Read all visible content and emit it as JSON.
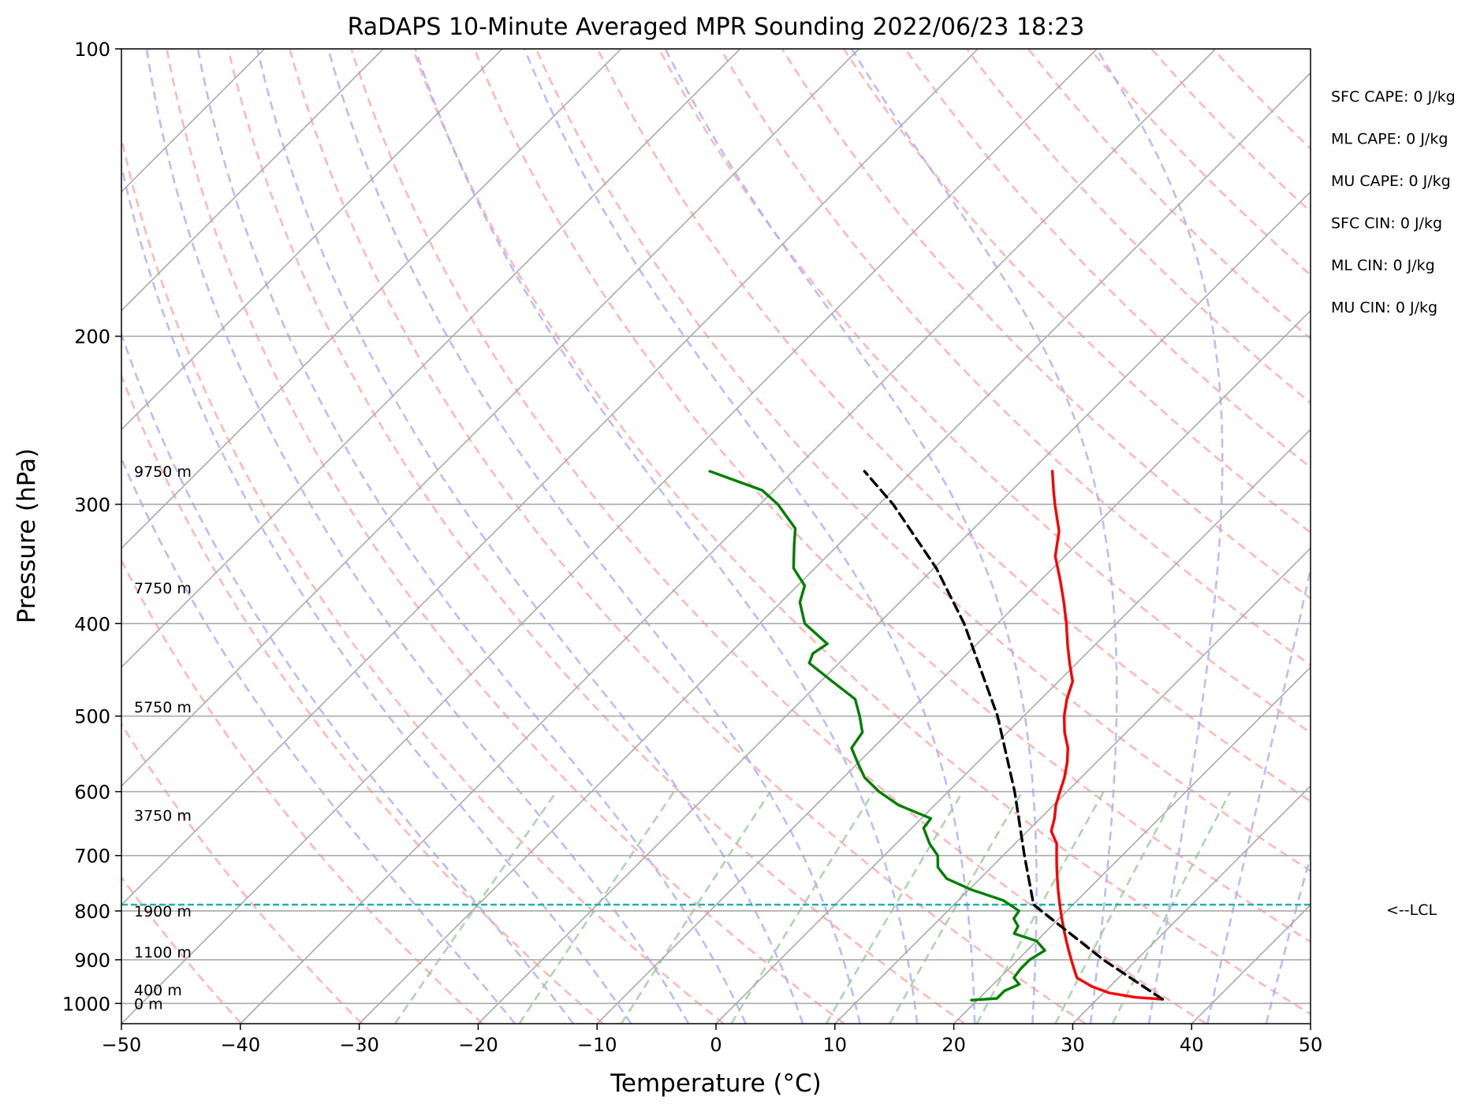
{
  "chart_data": {
    "type": "line",
    "title": "RaDAPS 10-Minute Averaged MPR Sounding 2022/06/23 18:23",
    "xlabel": "Temperature (°C)",
    "ylabel": "Pressure (hPa)",
    "xlim": [
      -50,
      50
    ],
    "ylim": [
      1050,
      100
    ],
    "y_scale": "log",
    "skew": "skew-T log-p",
    "grid": true,
    "x_ticks": [
      -50,
      -40,
      -30,
      -20,
      -10,
      0,
      10,
      20,
      30,
      40,
      50
    ],
    "x_tick_labels": [
      "−50",
      "−40",
      "−30",
      "−20",
      "−10",
      "0",
      "10",
      "20",
      "30",
      "40",
      "50"
    ],
    "y_ticks": [
      100,
      200,
      300,
      400,
      500,
      600,
      700,
      800,
      900,
      1000
    ],
    "y_tick_labels": [
      "100",
      "200",
      "300",
      "400",
      "500",
      "600",
      "700",
      "800",
      "900",
      "1000"
    ],
    "series": [
      {
        "role": "temperature",
        "color": "#ff0000",
        "points": [
          [
            990,
            35.5
          ],
          [
            985,
            33
          ],
          [
            975,
            30.5
          ],
          [
            960,
            28.5
          ],
          [
            940,
            26.5
          ],
          [
            920,
            25.5
          ],
          [
            900,
            24.5
          ],
          [
            880,
            23.5
          ],
          [
            860,
            22.5
          ],
          [
            840,
            21.5
          ],
          [
            820,
            20.5
          ],
          [
            800,
            19.5
          ],
          [
            780,
            18.5
          ],
          [
            760,
            17.5
          ],
          [
            740,
            16.5
          ],
          [
            720,
            15.5
          ],
          [
            700,
            14.5
          ],
          [
            680,
            13.5
          ],
          [
            660,
            12.0
          ],
          [
            640,
            11.2
          ],
          [
            620,
            10.2
          ],
          [
            600,
            9.4
          ],
          [
            580,
            8.6
          ],
          [
            560,
            7.6
          ],
          [
            540,
            6.4
          ],
          [
            520,
            4.8
          ],
          [
            500,
            3.4
          ],
          [
            480,
            2.2
          ],
          [
            460,
            1.2
          ],
          [
            440,
            -0.6
          ],
          [
            420,
            -2.4
          ],
          [
            400,
            -4.2
          ],
          [
            380,
            -6.2
          ],
          [
            360,
            -8.4
          ],
          [
            340,
            -10.8
          ],
          [
            320,
            -12.6
          ],
          [
            300,
            -15.2
          ],
          [
            290,
            -16.5
          ],
          [
            277,
            -18.2
          ]
        ]
      },
      {
        "role": "dewpoint",
        "color": "#008000",
        "points": [
          [
            992,
            19.5
          ],
          [
            988,
            21.5
          ],
          [
            970,
            21.5
          ],
          [
            955,
            22.2
          ],
          [
            940,
            21.2
          ],
          [
            920,
            21.0
          ],
          [
            900,
            21.0
          ],
          [
            880,
            21.5
          ],
          [
            860,
            20.0
          ],
          [
            845,
            17.5
          ],
          [
            830,
            17.2
          ],
          [
            815,
            16.2
          ],
          [
            800,
            16.0
          ],
          [
            780,
            13.8
          ],
          [
            760,
            10.2
          ],
          [
            740,
            7.2
          ],
          [
            720,
            5.5
          ],
          [
            700,
            4.5
          ],
          [
            680,
            2.8
          ],
          [
            655,
            1.0
          ],
          [
            640,
            0.8
          ],
          [
            620,
            -3.0
          ],
          [
            600,
            -5.8
          ],
          [
            580,
            -8.2
          ],
          [
            560,
            -10.0
          ],
          [
            540,
            -11.8
          ],
          [
            520,
            -12.2
          ],
          [
            500,
            -13.8
          ],
          [
            480,
            -15.6
          ],
          [
            460,
            -19.0
          ],
          [
            440,
            -22.5
          ],
          [
            430,
            -23.0
          ],
          [
            420,
            -22.6
          ],
          [
            400,
            -26.2
          ],
          [
            380,
            -28.4
          ],
          [
            365,
            -29.4
          ],
          [
            350,
            -31.8
          ],
          [
            330,
            -33.8
          ],
          [
            318,
            -35.0
          ],
          [
            300,
            -38.5
          ],
          [
            290,
            -41.0
          ],
          [
            277,
            -47.0
          ]
        ]
      },
      {
        "role": "parcel-path",
        "color": "#000000",
        "points": [
          [
            990,
            35.5
          ],
          [
            900,
            27.2
          ],
          [
            788,
            16.7
          ],
          [
            700,
            11.8
          ],
          [
            600,
            5.6
          ],
          [
            500,
            -2.2
          ],
          [
            400,
            -12.8
          ],
          [
            350,
            -19.8
          ],
          [
            300,
            -28.8
          ],
          [
            277,
            -34.0
          ]
        ]
      }
    ],
    "lcl": {
      "pressure": 788,
      "label": "<--LCL"
    },
    "height_labels": [
      {
        "text": "9750 m",
        "pressure": 277
      },
      {
        "text": "7750 m",
        "pressure": 367
      },
      {
        "text": "5750 m",
        "pressure": 489
      },
      {
        "text": "3750 m",
        "pressure": 635
      },
      {
        "text": "1900 m",
        "pressure": 800
      },
      {
        "text": "1100 m",
        "pressure": 883
      },
      {
        "text": "400 m",
        "pressure": 968
      },
      {
        "text": "0 m",
        "pressure": 1000
      }
    ],
    "parameters": [
      "SFC CAPE: 0 J/kg",
      "ML CAPE: 0 J/kg",
      "MU CAPE: 0 J/kg",
      "SFC CIN: 0 J/kg",
      "ML CIN: 0 J/kg",
      "MU CIN: 0 J/kg"
    ],
    "background_lines": {
      "isotherms_color": "#aaaaaa",
      "dry_adiabats_color": "#ffaaaa",
      "moist_adiabats_color": "#aaaaff",
      "mixing_ratio_color": "#99cc99",
      "isobar_color": "#aaaaaa",
      "lcl_color": "#20b2aa"
    }
  }
}
